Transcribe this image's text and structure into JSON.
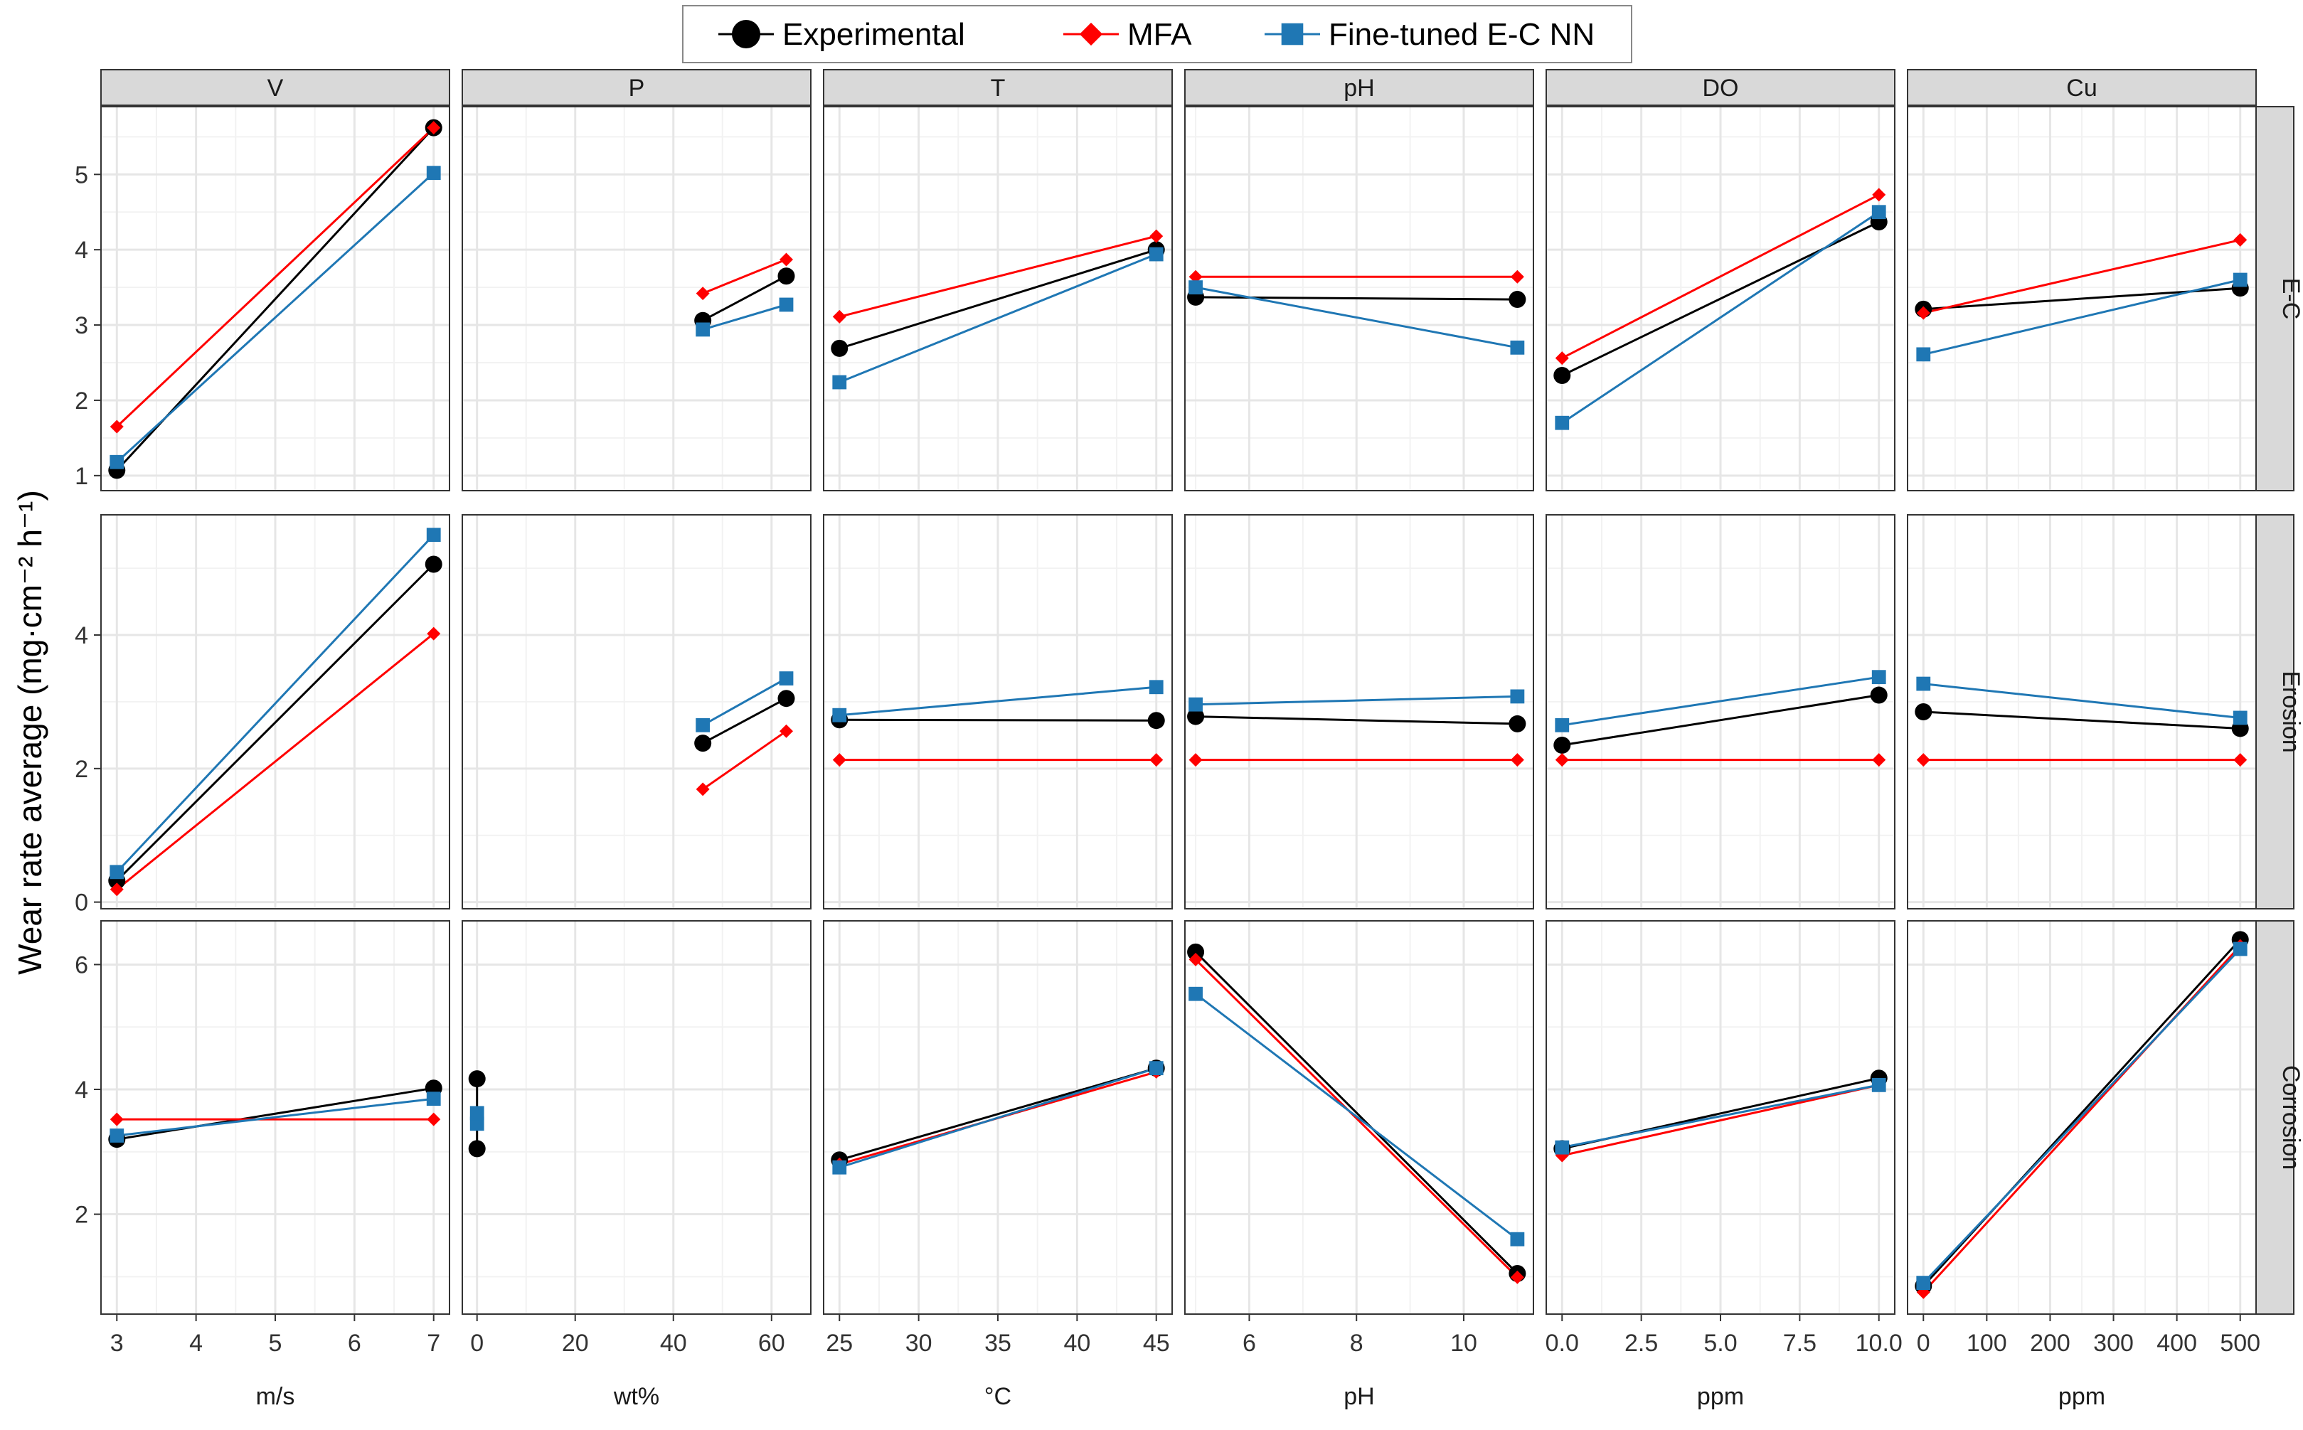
{
  "chart_data": {
    "type": "line",
    "ylabel": "Wear rate average (mg·cm⁻² h⁻¹)",
    "legend": {
      "position": "top-center",
      "entries": [
        {
          "name": "Experimental",
          "color": "#000000",
          "marker": "circle"
        },
        {
          "name": "MFA",
          "color": "#ff0000",
          "marker": "diamond"
        },
        {
          "name": "Fine-tuned E-C NN",
          "color": "#1f77b4",
          "marker": "square"
        }
      ]
    },
    "columns": [
      {
        "label": "V",
        "unit": "m/s",
        "xlim": [
          2.8,
          7.2
        ],
        "ticks": [
          3,
          4,
          5,
          6,
          7
        ],
        "tick_labels": [
          "3",
          "4",
          "5",
          "6",
          "7"
        ]
      },
      {
        "label": "P",
        "unit": "wt%",
        "xlim": [
          -3,
          68
        ],
        "ticks": [
          0,
          20,
          40,
          60
        ],
        "tick_labels": [
          "0",
          "20",
          "40",
          "60"
        ]
      },
      {
        "label": "T",
        "unit": "°C",
        "xlim": [
          24,
          46
        ],
        "ticks": [
          25,
          30,
          35,
          40,
          45
        ],
        "tick_labels": [
          "25",
          "30",
          "35",
          "40",
          "45"
        ]
      },
      {
        "label": "pH",
        "unit": "pH",
        "xlim": [
          4.8,
          11.3
        ],
        "ticks": [
          6,
          8,
          10
        ],
        "tick_labels": [
          "6",
          "8",
          "10"
        ]
      },
      {
        "label": "DO",
        "unit": "ppm",
        "xlim": [
          -0.5,
          10.5
        ],
        "ticks": [
          0,
          2.5,
          5,
          7.5,
          10
        ],
        "tick_labels": [
          "0.0",
          "2.5",
          "5.0",
          "7.5",
          "10.0"
        ]
      },
      {
        "label": "Cu",
        "unit": "ppm",
        "xlim": [
          -25,
          525
        ],
        "ticks": [
          0,
          100,
          200,
          300,
          400,
          500
        ],
        "tick_labels": [
          "0",
          "100",
          "200",
          "300",
          "400",
          "500"
        ]
      }
    ],
    "rows": [
      {
        "label": "E-C",
        "ylim": [
          0.8,
          5.9
        ],
        "ticks": [
          1,
          2,
          3,
          4,
          5
        ],
        "tick_labels": [
          "1",
          "2",
          "3",
          "4",
          "5"
        ]
      },
      {
        "label": "Erosion",
        "ylim": [
          -0.1,
          5.8
        ],
        "ticks": [
          0,
          2,
          4
        ],
        "tick_labels": [
          "0",
          "2",
          "4"
        ]
      },
      {
        "label": "Corrosion",
        "ylim": [
          0.4,
          6.7
        ],
        "ticks": [
          2,
          4,
          6
        ],
        "tick_labels": [
          "2",
          "4",
          "6"
        ]
      }
    ],
    "panels": [
      {
        "row": 0,
        "col": 0,
        "series": [
          {
            "name": "Experimental",
            "points": [
              [
                3,
                1.07
              ],
              [
                7,
                5.62
              ]
            ]
          },
          {
            "name": "MFA",
            "points": [
              [
                3,
                1.65
              ],
              [
                7,
                5.62
              ]
            ]
          },
          {
            "name": "Fine-tuned E-C NN",
            "points": [
              [
                3,
                1.18
              ],
              [
                7,
                5.02
              ]
            ]
          }
        ]
      },
      {
        "row": 0,
        "col": 1,
        "series": [
          {
            "name": "Experimental",
            "points": [
              [
                46,
                3.06
              ],
              [
                63,
                3.65
              ]
            ]
          },
          {
            "name": "MFA",
            "points": [
              [
                46,
                3.42
              ],
              [
                63,
                3.87
              ]
            ]
          },
          {
            "name": "Fine-tuned E-C NN",
            "points": [
              [
                46,
                2.94
              ],
              [
                63,
                3.27
              ]
            ]
          }
        ]
      },
      {
        "row": 0,
        "col": 2,
        "series": [
          {
            "name": "Experimental",
            "points": [
              [
                25,
                2.69
              ],
              [
                45,
                4.0
              ]
            ]
          },
          {
            "name": "MFA",
            "points": [
              [
                25,
                3.11
              ],
              [
                45,
                4.18
              ]
            ]
          },
          {
            "name": "Fine-tuned E-C NN",
            "points": [
              [
                25,
                2.24
              ],
              [
                45,
                3.94
              ]
            ]
          }
        ]
      },
      {
        "row": 0,
        "col": 3,
        "series": [
          {
            "name": "Experimental",
            "points": [
              [
                5,
                3.37
              ],
              [
                11,
                3.34
              ]
            ]
          },
          {
            "name": "MFA",
            "points": [
              [
                5,
                3.64
              ],
              [
                11,
                3.64
              ]
            ]
          },
          {
            "name": "Fine-tuned E-C NN",
            "points": [
              [
                5,
                3.5
              ],
              [
                11,
                2.7
              ]
            ]
          }
        ]
      },
      {
        "row": 0,
        "col": 4,
        "series": [
          {
            "name": "Experimental",
            "points": [
              [
                0,
                2.33
              ],
              [
                10,
                4.37
              ]
            ]
          },
          {
            "name": "MFA",
            "points": [
              [
                0,
                2.56
              ],
              [
                10,
                4.73
              ]
            ]
          },
          {
            "name": "Fine-tuned E-C NN",
            "points": [
              [
                0,
                1.7
              ],
              [
                10,
                4.5
              ]
            ]
          }
        ]
      },
      {
        "row": 0,
        "col": 5,
        "series": [
          {
            "name": "Experimental",
            "points": [
              [
                0,
                3.21
              ],
              [
                500,
                3.49
              ]
            ]
          },
          {
            "name": "MFA",
            "points": [
              [
                0,
                3.16
              ],
              [
                500,
                4.13
              ]
            ]
          },
          {
            "name": "Fine-tuned E-C NN",
            "points": [
              [
                0,
                2.61
              ],
              [
                500,
                3.6
              ]
            ]
          }
        ]
      },
      {
        "row": 1,
        "col": 0,
        "series": [
          {
            "name": "Experimental",
            "points": [
              [
                3,
                0.32
              ],
              [
                7,
                5.06
              ]
            ]
          },
          {
            "name": "MFA",
            "points": [
              [
                3,
                0.19
              ],
              [
                7,
                4.02
              ]
            ]
          },
          {
            "name": "Fine-tuned E-C NN",
            "points": [
              [
                3,
                0.45
              ],
              [
                7,
                5.5
              ]
            ]
          }
        ]
      },
      {
        "row": 1,
        "col": 1,
        "series": [
          {
            "name": "Experimental",
            "points": [
              [
                46,
                2.38
              ],
              [
                63,
                3.05
              ]
            ]
          },
          {
            "name": "MFA",
            "points": [
              [
                46,
                1.69
              ],
              [
                63,
                2.56
              ]
            ]
          },
          {
            "name": "Fine-tuned E-C NN",
            "points": [
              [
                46,
                2.65
              ],
              [
                63,
                3.35
              ]
            ]
          }
        ]
      },
      {
        "row": 1,
        "col": 2,
        "series": [
          {
            "name": "Experimental",
            "points": [
              [
                25,
                2.73
              ],
              [
                45,
                2.72
              ]
            ]
          },
          {
            "name": "MFA",
            "points": [
              [
                25,
                2.13
              ],
              [
                45,
                2.13
              ]
            ]
          },
          {
            "name": "Fine-tuned E-C NN",
            "points": [
              [
                25,
                2.8
              ],
              [
                45,
                3.22
              ]
            ]
          }
        ]
      },
      {
        "row": 1,
        "col": 3,
        "series": [
          {
            "name": "Experimental",
            "points": [
              [
                5,
                2.78
              ],
              [
                11,
                2.67
              ]
            ]
          },
          {
            "name": "MFA",
            "points": [
              [
                5,
                2.13
              ],
              [
                11,
                2.13
              ]
            ]
          },
          {
            "name": "Fine-tuned E-C NN",
            "points": [
              [
                5,
                2.96
              ],
              [
                11,
                3.08
              ]
            ]
          }
        ]
      },
      {
        "row": 1,
        "col": 4,
        "series": [
          {
            "name": "Experimental",
            "points": [
              [
                0,
                2.35
              ],
              [
                10,
                3.1
              ]
            ]
          },
          {
            "name": "MFA",
            "points": [
              [
                0,
                2.13
              ],
              [
                10,
                2.13
              ]
            ]
          },
          {
            "name": "Fine-tuned E-C NN",
            "points": [
              [
                0,
                2.65
              ],
              [
                10,
                3.37
              ]
            ]
          }
        ]
      },
      {
        "row": 1,
        "col": 5,
        "series": [
          {
            "name": "Experimental",
            "points": [
              [
                0,
                2.85
              ],
              [
                500,
                2.6
              ]
            ]
          },
          {
            "name": "MFA",
            "points": [
              [
                0,
                2.13
              ],
              [
                500,
                2.13
              ]
            ]
          },
          {
            "name": "Fine-tuned E-C NN",
            "points": [
              [
                0,
                3.27
              ],
              [
                500,
                2.76
              ]
            ]
          }
        ]
      },
      {
        "row": 2,
        "col": 0,
        "series": [
          {
            "name": "Experimental",
            "points": [
              [
                3,
                3.2
              ],
              [
                7,
                4.02
              ]
            ]
          },
          {
            "name": "MFA",
            "points": [
              [
                3,
                3.52
              ],
              [
                7,
                3.52
              ]
            ]
          },
          {
            "name": "Fine-tuned E-C NN",
            "points": [
              [
                3,
                3.26
              ],
              [
                7,
                3.85
              ]
            ]
          }
        ]
      },
      {
        "row": 2,
        "col": 1,
        "series": [
          {
            "name": "Experimental",
            "points": [
              [
                0,
                4.17
              ],
              [
                0,
                3.05
              ]
            ]
          },
          {
            "name": "MFA",
            "points": [
              [
                0,
                3.6
              ]
            ]
          },
          {
            "name": "Fine-tuned E-C NN",
            "points": [
              [
                0,
                3.45
              ],
              [
                0,
                3.62
              ]
            ]
          }
        ]
      },
      {
        "row": 2,
        "col": 2,
        "series": [
          {
            "name": "Experimental",
            "points": [
              [
                25,
                2.87
              ],
              [
                45,
                4.34
              ]
            ]
          },
          {
            "name": "MFA",
            "points": [
              [
                25,
                2.8
              ],
              [
                45,
                4.28
              ]
            ]
          },
          {
            "name": "Fine-tuned E-C NN",
            "points": [
              [
                25,
                2.75
              ],
              [
                45,
                4.34
              ]
            ]
          }
        ]
      },
      {
        "row": 2,
        "col": 3,
        "series": [
          {
            "name": "Experimental",
            "points": [
              [
                5,
                6.2
              ],
              [
                11,
                1.05
              ]
            ]
          },
          {
            "name": "MFA",
            "points": [
              [
                5,
                6.08
              ],
              [
                11,
                0.99
              ]
            ]
          },
          {
            "name": "Fine-tuned E-C NN",
            "points": [
              [
                5,
                5.53
              ],
              [
                11,
                1.6
              ]
            ]
          }
        ]
      },
      {
        "row": 2,
        "col": 4,
        "series": [
          {
            "name": "Experimental",
            "points": [
              [
                0,
                3.05
              ],
              [
                10,
                4.18
              ]
            ]
          },
          {
            "name": "MFA",
            "points": [
              [
                0,
                2.94
              ],
              [
                10,
                4.07
              ]
            ]
          },
          {
            "name": "Fine-tuned E-C NN",
            "points": [
              [
                0,
                3.07
              ],
              [
                10,
                4.07
              ]
            ]
          }
        ]
      },
      {
        "row": 2,
        "col": 5,
        "series": [
          {
            "name": "Experimental",
            "points": [
              [
                0,
                0.85
              ],
              [
                500,
                6.4
              ]
            ]
          },
          {
            "name": "MFA",
            "points": [
              [
                0,
                0.75
              ],
              [
                500,
                6.3
              ]
            ]
          },
          {
            "name": "Fine-tuned E-C NN",
            "points": [
              [
                0,
                0.9
              ],
              [
                500,
                6.25
              ]
            ]
          }
        ]
      }
    ]
  }
}
